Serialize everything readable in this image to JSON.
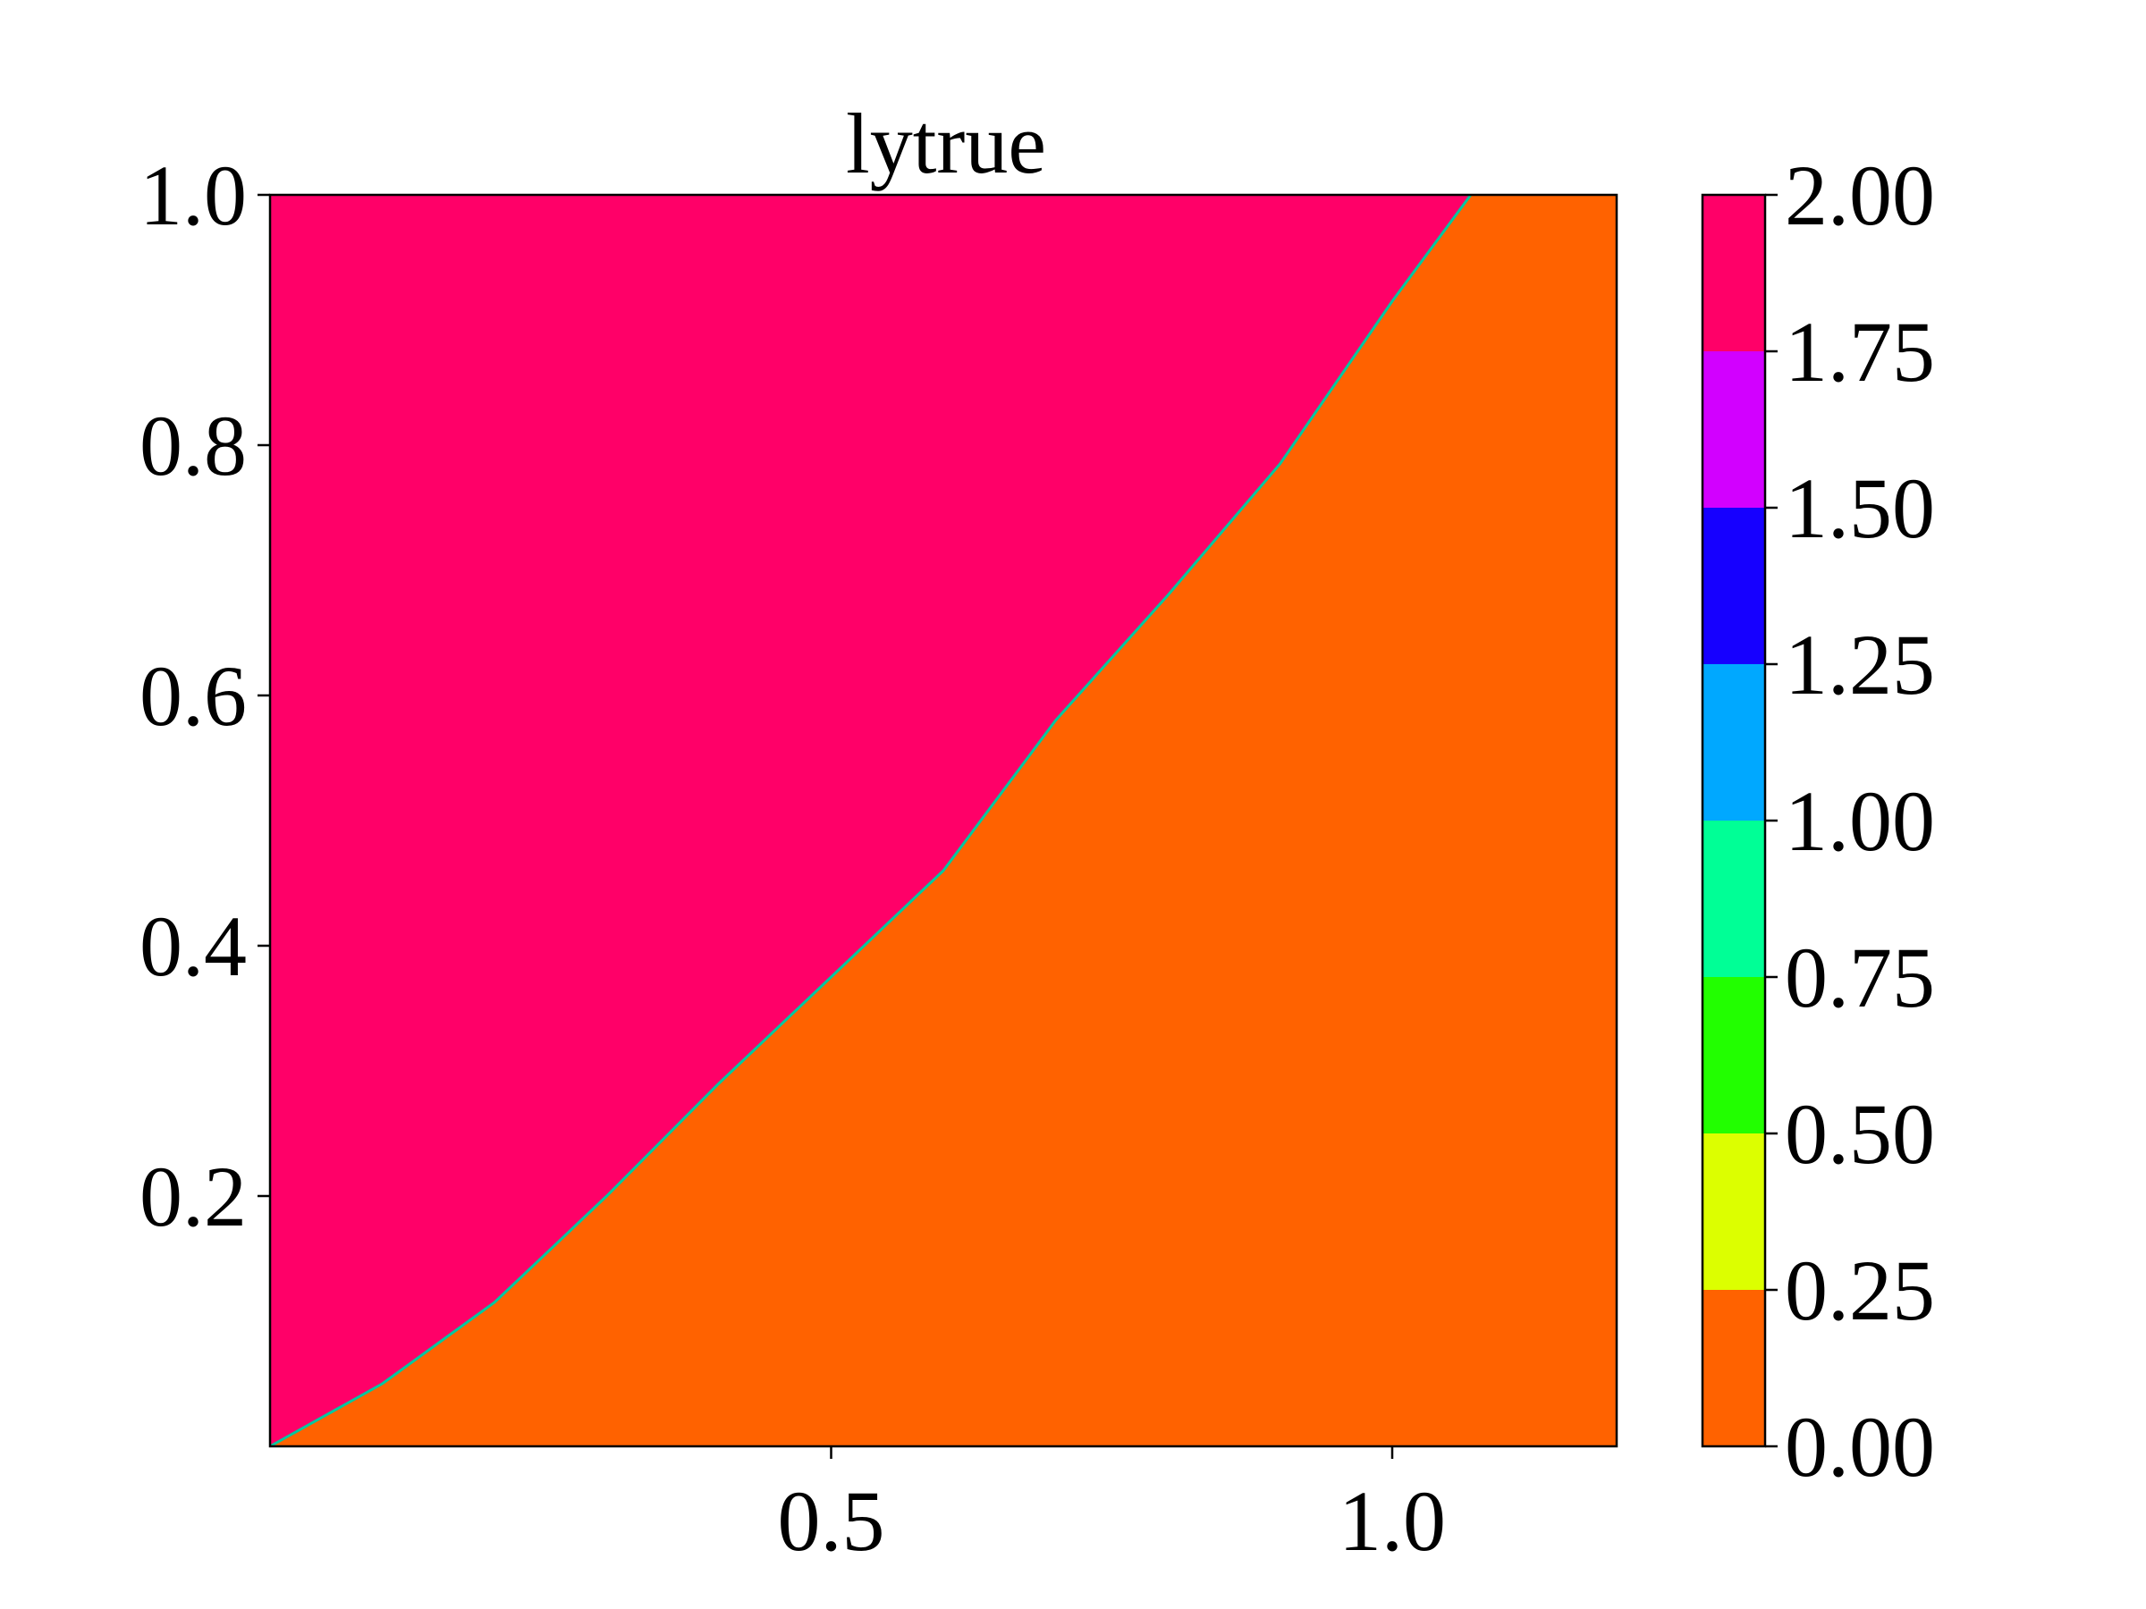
{
  "chart_data": {
    "type": "heatmap",
    "title": "lytrue",
    "xlabel": "",
    "ylabel": "",
    "xlim": [
      0.0,
      1.2
    ],
    "ylim": [
      0.0,
      1.0
    ],
    "x_ticks": [
      0.5,
      1.0
    ],
    "x_tick_labels": [
      "0.5",
      "1.0"
    ],
    "y_ticks": [
      0.2,
      0.4,
      0.6,
      0.8,
      1.0
    ],
    "y_tick_labels": [
      "0.2",
      "0.4",
      "0.6",
      "0.8",
      "1.0"
    ],
    "regions": [
      {
        "name": "upper-left",
        "value": 2.0,
        "color": "#ff0068"
      },
      {
        "name": "lower-right",
        "value": 0.0,
        "color": "#ff6200"
      }
    ],
    "boundary": {
      "description": "curve separating value 2.0 (above) from value 0.0 (below)",
      "x": [
        0.0,
        0.1,
        0.2,
        0.3,
        0.4,
        0.5,
        0.6,
        0.7,
        0.8,
        0.9,
        1.0,
        1.07
      ],
      "y": [
        0.0,
        0.05,
        0.115,
        0.2,
        0.29,
        0.375,
        0.46,
        0.58,
        0.68,
        0.785,
        0.915,
        1.0
      ]
    },
    "colorbar": {
      "levels": [
        0.0,
        0.25,
        0.5,
        0.75,
        1.0,
        1.25,
        1.5,
        1.75,
        2.0
      ],
      "tick_labels": [
        "0.00",
        "0.25",
        "0.50",
        "0.75",
        "1.00",
        "1.25",
        "1.50",
        "1.75",
        "2.00"
      ],
      "colors": [
        "#ff6200",
        "#dcff00",
        "#22ff00",
        "#00ff96",
        "#00a8ff",
        "#1600ff",
        "#d200ff",
        "#ff0068"
      ]
    }
  }
}
